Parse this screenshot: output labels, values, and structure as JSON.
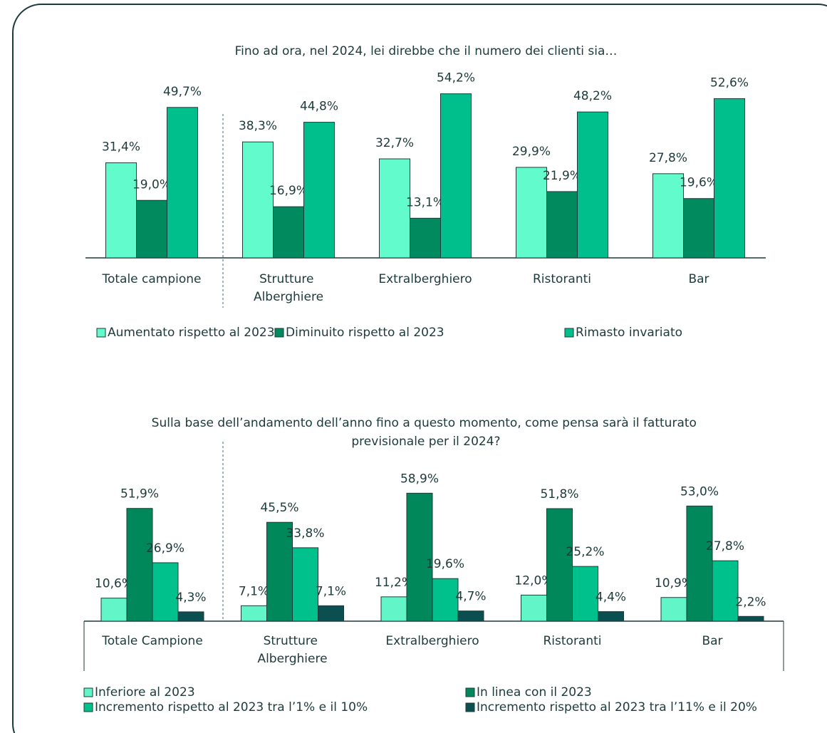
{
  "chart_data": [
    {
      "type": "bar",
      "title": "Fino ad ora, nel 2024, lei direbbe che il numero dei clienti sia…",
      "categories": [
        "Totale campione",
        "Strutture Alberghiere",
        "Extralberghiero",
        "Ristoranti",
        "Bar"
      ],
      "legend": "bottom",
      "series": [
        {
          "name": "Aumentato rispetto al 2023",
          "color": "#62fbcb",
          "values": [
            31.4,
            38.3,
            32.7,
            29.9,
            27.8
          ],
          "value_labels": [
            "31,4%",
            "38,3%",
            "32,7%",
            "29,9%",
            "27,8%"
          ]
        },
        {
          "name": "Diminuito rispetto al 2023",
          "color": "#008a5e",
          "values": [
            19.0,
            16.9,
            13.1,
            21.9,
            19.6
          ],
          "value_labels": [
            "19,0%",
            "16,9%",
            "13,1%",
            "21,9%",
            "19,6%"
          ]
        },
        {
          "name": "Rimasto invariato",
          "color": "#00bf8c",
          "values": [
            49.7,
            44.8,
            54.2,
            48.2,
            52.6
          ],
          "value_labels": [
            "49,7%",
            "44,8%",
            "54,2%",
            "48,2%",
            "52,6%"
          ]
        }
      ]
    },
    {
      "type": "bar",
      "title": "Sulla base dell’andamento dell’anno fino a questo momento, come pensa sarà il fatturato previsionale per il 2024?",
      "categories": [
        "Totale Campione",
        "Strutture Alberghiere",
        "Extralberghiero",
        "Ristoranti",
        "Bar"
      ],
      "legend": "bottom",
      "series": [
        {
          "name": "Inferiore al 2023",
          "color": "#62f5c8",
          "values": [
            10.6,
            7.1,
            11.2,
            12.0,
            10.9
          ],
          "value_labels": [
            "10,6%",
            "7,1%",
            "11,2%",
            "12,0%",
            "10,9%"
          ]
        },
        {
          "name": "In linea con il 2023",
          "color": "#00875a",
          "values": [
            51.9,
            45.5,
            58.9,
            51.8,
            53.0
          ],
          "value_labels": [
            "51,9%",
            "45,5%",
            "58,9%",
            "51,8%",
            "53,0%"
          ]
        },
        {
          "name": "Incremento rispetto al 2023 tra l’1% e il 10%",
          "color": "#00c08b",
          "values": [
            26.9,
            33.8,
            19.6,
            25.2,
            27.8
          ],
          "value_labels": [
            "26,9%",
            "33,8%",
            "19,6%",
            "25,2%",
            "27,8%"
          ]
        },
        {
          "name": "Incremento rispetto al 2023 tra l’11% e il 20%",
          "color": "#0b4f50",
          "values": [
            4.3,
            7.1,
            4.7,
            4.4,
            2.2
          ],
          "value_labels": [
            "4,3%",
            "7,1%",
            "4,7%",
            "4,4%",
            "2,2%"
          ]
        }
      ]
    }
  ]
}
